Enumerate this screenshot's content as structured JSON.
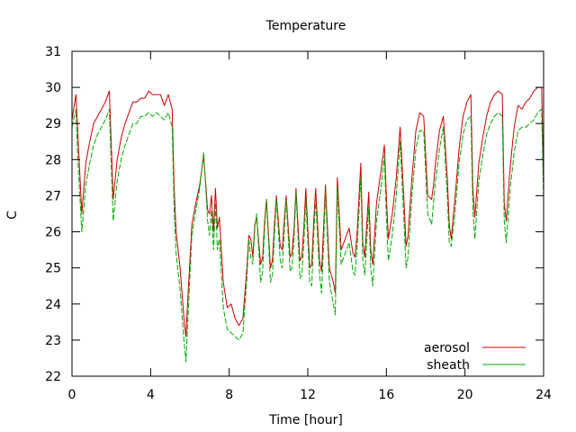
{
  "chart_data": {
    "type": "line",
    "title": "Temperature",
    "xlabel": "Time [hour]",
    "ylabel": "C",
    "xlim": [
      0,
      24
    ],
    "ylim": [
      22,
      31
    ],
    "xticks": [
      0,
      4,
      8,
      12,
      16,
      20,
      24
    ],
    "yticks": [
      22,
      23,
      24,
      25,
      26,
      27,
      28,
      29,
      30,
      31
    ],
    "grid": false,
    "legend_position": "bottom-right",
    "series": [
      {
        "name": "aerosol",
        "color": "#cc0000",
        "x": [
          0,
          0.2,
          0.3,
          0.5,
          0.7,
          0.9,
          1.1,
          1.3,
          1.5,
          1.7,
          1.9,
          2.1,
          2.3,
          2.5,
          2.7,
          2.9,
          3.1,
          3.3,
          3.5,
          3.7,
          3.9,
          4.1,
          4.3,
          4.5,
          4.7,
          4.9,
          5.1,
          5.2,
          5.3,
          5.5,
          5.7,
          5.8,
          5.9,
          6.1,
          6.3,
          6.5,
          6.7,
          6.9,
          7.0,
          7.1,
          7.2,
          7.3,
          7.4,
          7.5,
          7.7,
          7.9,
          8.1,
          8.3,
          8.5,
          8.7,
          8.9,
          9.0,
          9.1,
          9.2,
          9.3,
          9.4,
          9.6,
          9.7,
          9.8,
          9.9,
          10.1,
          10.2,
          10.3,
          10.4,
          10.6,
          10.7,
          10.8,
          10.9,
          11.1,
          11.2,
          11.3,
          11.4,
          11.6,
          11.7,
          11.8,
          11.9,
          12.1,
          12.2,
          12.3,
          12.4,
          12.6,
          12.7,
          12.8,
          12.9,
          13.1,
          13.3,
          13.4,
          13.5,
          13.7,
          13.9,
          14.1,
          14.3,
          14.4,
          14.5,
          14.7,
          14.8,
          14.9,
          15.1,
          15.2,
          15.3,
          15.5,
          15.7,
          15.9,
          16.0,
          16.1,
          16.3,
          16.5,
          16.7,
          16.9,
          17.0,
          17.1,
          17.3,
          17.5,
          17.7,
          17.9,
          18.1,
          18.3,
          18.4,
          18.5,
          18.7,
          18.9,
          19.1,
          19.2,
          19.3,
          19.5,
          19.7,
          19.9,
          20.1,
          20.3,
          20.4,
          20.5,
          20.7,
          20.9,
          21.1,
          21.3,
          21.5,
          21.7,
          21.9,
          22.0,
          22.1,
          22.3,
          22.5,
          22.7,
          22.9,
          23.1,
          23.3,
          23.5,
          23.7,
          23.9,
          24
        ],
        "values": [
          29.1,
          29.8,
          28.7,
          26.5,
          27.9,
          28.5,
          29.0,
          29.2,
          29.4,
          29.6,
          29.9,
          26.9,
          28.0,
          28.6,
          29.0,
          29.3,
          29.6,
          29.6,
          29.7,
          29.7,
          29.9,
          29.8,
          29.8,
          29.8,
          29.5,
          29.8,
          29.4,
          27.2,
          26.0,
          25.0,
          23.6,
          23.1,
          24.2,
          26.2,
          26.8,
          27.3,
          28.1,
          26.6,
          26.5,
          27.0,
          26.0,
          27.2,
          26.1,
          26.4,
          24.6,
          23.9,
          24.0,
          23.6,
          23.4,
          23.6,
          25.0,
          25.9,
          25.8,
          25.3,
          26.2,
          26.4,
          25.1,
          25.3,
          26.3,
          26.9,
          25.0,
          25.2,
          26.2,
          27.0,
          25.6,
          25.5,
          26.3,
          27.0,
          25.3,
          25.4,
          26.1,
          27.2,
          25.2,
          25.3,
          26.1,
          27.2,
          25.0,
          25.1,
          26.3,
          27.2,
          25.2,
          24.9,
          26.1,
          27.3,
          25.0,
          24.6,
          24.3,
          27.5,
          25.5,
          25.8,
          26.1,
          25.4,
          25.3,
          25.9,
          27.9,
          25.7,
          25.3,
          27.1,
          25.5,
          25.1,
          26.8,
          27.6,
          28.4,
          27.0,
          25.8,
          26.5,
          27.5,
          28.9,
          26.8,
          25.6,
          25.9,
          27.5,
          28.8,
          29.3,
          29.2,
          27.0,
          26.9,
          27.3,
          27.9,
          28.8,
          29.2,
          27.5,
          26.2,
          25.8,
          27.0,
          28.3,
          29.2,
          29.6,
          29.8,
          27.2,
          26.4,
          27.9,
          28.6,
          29.2,
          29.6,
          29.8,
          29.9,
          29.8,
          26.8,
          26.3,
          27.8,
          28.9,
          29.5,
          29.4,
          29.6,
          29.7,
          29.9,
          30.0,
          30.0,
          27.3
        ]
      },
      {
        "name": "sheath",
        "color": "#00aa00",
        "x": [
          0,
          0.2,
          0.3,
          0.5,
          0.7,
          0.9,
          1.1,
          1.3,
          1.5,
          1.7,
          1.9,
          2.1,
          2.3,
          2.5,
          2.7,
          2.9,
          3.1,
          3.3,
          3.5,
          3.7,
          3.9,
          4.1,
          4.3,
          4.5,
          4.7,
          4.9,
          5.1,
          5.2,
          5.3,
          5.5,
          5.7,
          5.8,
          5.9,
          6.1,
          6.3,
          6.5,
          6.7,
          6.9,
          7.0,
          7.1,
          7.2,
          7.3,
          7.4,
          7.5,
          7.7,
          7.9,
          8.1,
          8.3,
          8.5,
          8.7,
          8.9,
          9.0,
          9.1,
          9.2,
          9.3,
          9.4,
          9.6,
          9.7,
          9.8,
          9.9,
          10.1,
          10.2,
          10.3,
          10.4,
          10.6,
          10.7,
          10.8,
          10.9,
          11.1,
          11.2,
          11.3,
          11.4,
          11.6,
          11.7,
          11.8,
          11.9,
          12.1,
          12.2,
          12.3,
          12.4,
          12.6,
          12.7,
          12.8,
          12.9,
          13.1,
          13.3,
          13.4,
          13.5,
          13.7,
          13.9,
          14.1,
          14.3,
          14.4,
          14.5,
          14.7,
          14.8,
          14.9,
          15.1,
          15.2,
          15.3,
          15.5,
          15.7,
          15.9,
          16.0,
          16.1,
          16.3,
          16.5,
          16.7,
          16.9,
          17.0,
          17.1,
          17.3,
          17.5,
          17.7,
          17.9,
          18.1,
          18.3,
          18.4,
          18.5,
          18.7,
          18.9,
          19.1,
          19.2,
          19.3,
          19.5,
          19.7,
          19.9,
          20.1,
          20.3,
          20.4,
          20.5,
          20.7,
          20.9,
          21.1,
          21.3,
          21.5,
          21.7,
          21.9,
          22.0,
          22.1,
          22.3,
          22.5,
          22.7,
          22.9,
          23.1,
          23.3,
          23.5,
          23.7,
          23.9,
          24
        ],
        "values": [
          28.9,
          29.4,
          28.0,
          26.0,
          27.3,
          27.9,
          28.4,
          28.7,
          28.9,
          29.1,
          29.4,
          26.3,
          27.4,
          28.0,
          28.4,
          28.7,
          29.0,
          29.0,
          29.2,
          29.2,
          29.3,
          29.2,
          29.3,
          29.2,
          29.1,
          29.3,
          28.9,
          26.6,
          25.4,
          24.4,
          23.0,
          22.4,
          23.6,
          25.9,
          26.6,
          27.2,
          28.2,
          26.3,
          25.9,
          26.6,
          25.5,
          26.8,
          25.5,
          25.8,
          23.9,
          23.3,
          23.2,
          23.1,
          23.0,
          23.2,
          24.7,
          25.8,
          25.3,
          25.1,
          26.1,
          26.5,
          24.6,
          24.9,
          26.1,
          26.9,
          24.6,
          24.8,
          25.9,
          26.9,
          25.2,
          25.0,
          26.0,
          26.9,
          24.9,
          25.0,
          25.8,
          27.1,
          24.7,
          24.8,
          25.7,
          26.9,
          24.6,
          24.5,
          25.9,
          26.9,
          24.8,
          24.3,
          25.6,
          27.1,
          24.6,
          24.0,
          23.7,
          27.2,
          25.1,
          25.4,
          25.7,
          24.9,
          24.8,
          25.5,
          27.5,
          25.2,
          24.8,
          26.7,
          25.0,
          24.5,
          26.3,
          27.1,
          28.1,
          26.4,
          25.2,
          25.9,
          27.0,
          28.5,
          26.2,
          25.0,
          25.3,
          27.0,
          28.3,
          28.8,
          28.8,
          26.5,
          26.2,
          26.8,
          27.4,
          28.3,
          28.9,
          27.0,
          25.7,
          25.6,
          26.6,
          27.9,
          28.7,
          29.1,
          29.2,
          26.6,
          25.8,
          27.4,
          28.1,
          28.7,
          29.0,
          29.2,
          29.3,
          29.2,
          26.3,
          25.7,
          27.2,
          28.2,
          28.8,
          28.9,
          28.9,
          29.0,
          29.1,
          29.3,
          29.4,
          26.9
        ]
      }
    ]
  }
}
